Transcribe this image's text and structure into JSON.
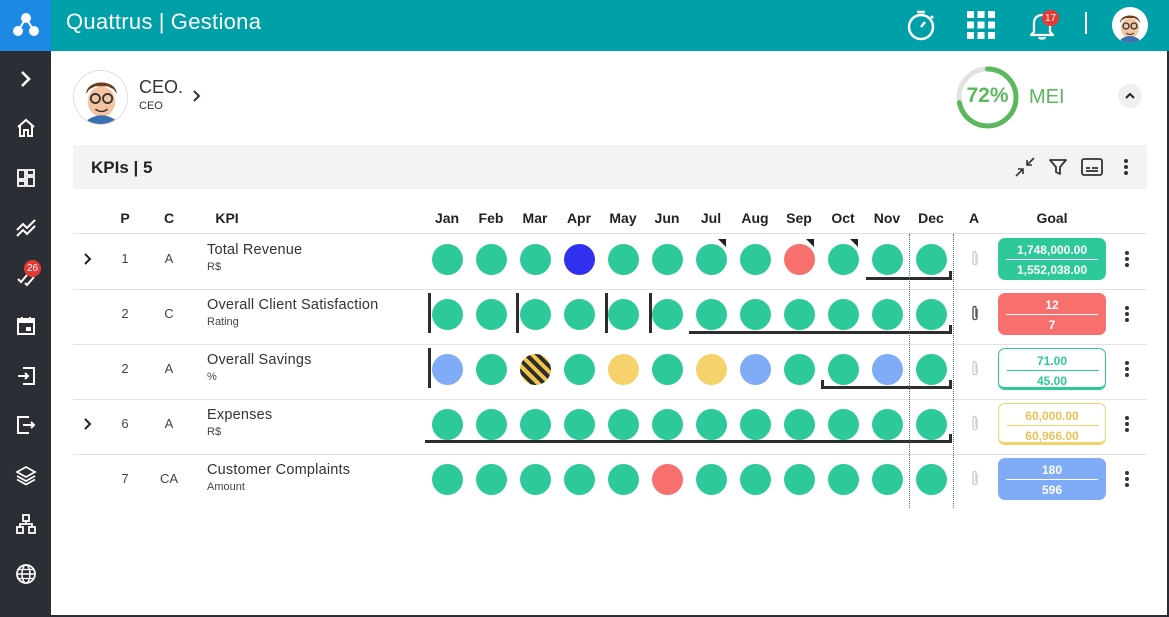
{
  "header": {
    "brand": "Quattrus",
    "separator": "|",
    "module": "Gestiona",
    "notification_count": "17",
    "icons": [
      "timer-icon",
      "apps-grid-icon",
      "bell-icon",
      "user-avatar"
    ]
  },
  "sidebar": {
    "items": [
      {
        "name": "expand-sidebar",
        "icon": "chevron-right-icon"
      },
      {
        "name": "home",
        "icon": "home-icon"
      },
      {
        "name": "dashboard",
        "icon": "dashboard-icon"
      },
      {
        "name": "trends",
        "icon": "trend-icon"
      },
      {
        "name": "tasks",
        "icon": "check-list-icon",
        "badge": "26"
      },
      {
        "name": "calendar",
        "icon": "calendar-icon"
      },
      {
        "name": "import",
        "icon": "enter-icon"
      },
      {
        "name": "export",
        "icon": "exit-icon"
      },
      {
        "name": "layers",
        "icon": "layers-icon"
      },
      {
        "name": "org-chart",
        "icon": "org-chart-icon"
      },
      {
        "name": "globe",
        "icon": "globe-icon"
      }
    ]
  },
  "user": {
    "name": "CEO.",
    "role": "CEO"
  },
  "mei": {
    "percent_label": "72%",
    "percent": 72,
    "label": "MEI",
    "color": "#5cb85c"
  },
  "kpi_panel": {
    "title": "KPIs | 5",
    "actions": [
      "collapse-icon",
      "filter-icon",
      "subtitles-icon",
      "more-vert-icon"
    ]
  },
  "columns": {
    "p": "P",
    "c": "C",
    "kpi": "KPI",
    "months": [
      "Jan",
      "Feb",
      "Mar",
      "Apr",
      "May",
      "Jun",
      "Jul",
      "Aug",
      "Sep",
      "Oct",
      "Nov",
      "Dec"
    ],
    "a": "A",
    "goal": "Goal"
  },
  "rows": [
    {
      "p": "1",
      "c": "A",
      "name": "Total Revenue",
      "unit": "R$",
      "expandable": true,
      "dots": [
        "green",
        "green",
        "green",
        "blue",
        "green",
        "green",
        "green",
        "green",
        "red",
        "green",
        "green",
        "green"
      ],
      "goal_top": "1,748,000.00",
      "goal_bottom": "1,552,038.00",
      "goal_style": "green"
    },
    {
      "p": "2",
      "c": "C",
      "name": "Overall Client Satisfaction",
      "unit": "Rating",
      "expandable": false,
      "dots": [
        "green",
        "green",
        "green",
        "green",
        "green",
        "green",
        "green",
        "green",
        "green",
        "green",
        "green",
        "green"
      ],
      "goal_top": "12",
      "goal_bottom": "7",
      "goal_style": "red"
    },
    {
      "p": "2",
      "c": "A",
      "name": "Overall Savings",
      "unit": "%",
      "expandable": false,
      "dots": [
        "lightblue",
        "green",
        "striped",
        "green",
        "yellow",
        "green",
        "yellow",
        "lightblue",
        "green",
        "green",
        "lightblue",
        "green"
      ],
      "goal_top": "71.00",
      "goal_bottom": "45.00",
      "goal_style": "green-out"
    },
    {
      "p": "6",
      "c": "A",
      "name": "Expenses",
      "unit": "R$",
      "expandable": true,
      "dots": [
        "green",
        "green",
        "green",
        "green",
        "green",
        "green",
        "green",
        "green",
        "green",
        "green",
        "green",
        "green"
      ],
      "goal_top": "60,000.00",
      "goal_bottom": "60,966.00",
      "goal_style": "yellow-out"
    },
    {
      "p": "7",
      "c": "CA",
      "name": "Customer Complaints",
      "unit": "Amount",
      "expandable": false,
      "dots": [
        "green",
        "green",
        "green",
        "green",
        "green",
        "red",
        "green",
        "green",
        "green",
        "green",
        "green",
        "green"
      ],
      "goal_top": "180",
      "goal_bottom": "596",
      "goal_style": "lblue"
    }
  ],
  "colors": {
    "topbar": "#00a0a8",
    "sidebar": "#2b2f35",
    "green": "#2ec99a",
    "blue": "#3030ee",
    "red": "#f7706d",
    "lightblue": "#7fabf7",
    "yellow": "#f5d26b"
  }
}
